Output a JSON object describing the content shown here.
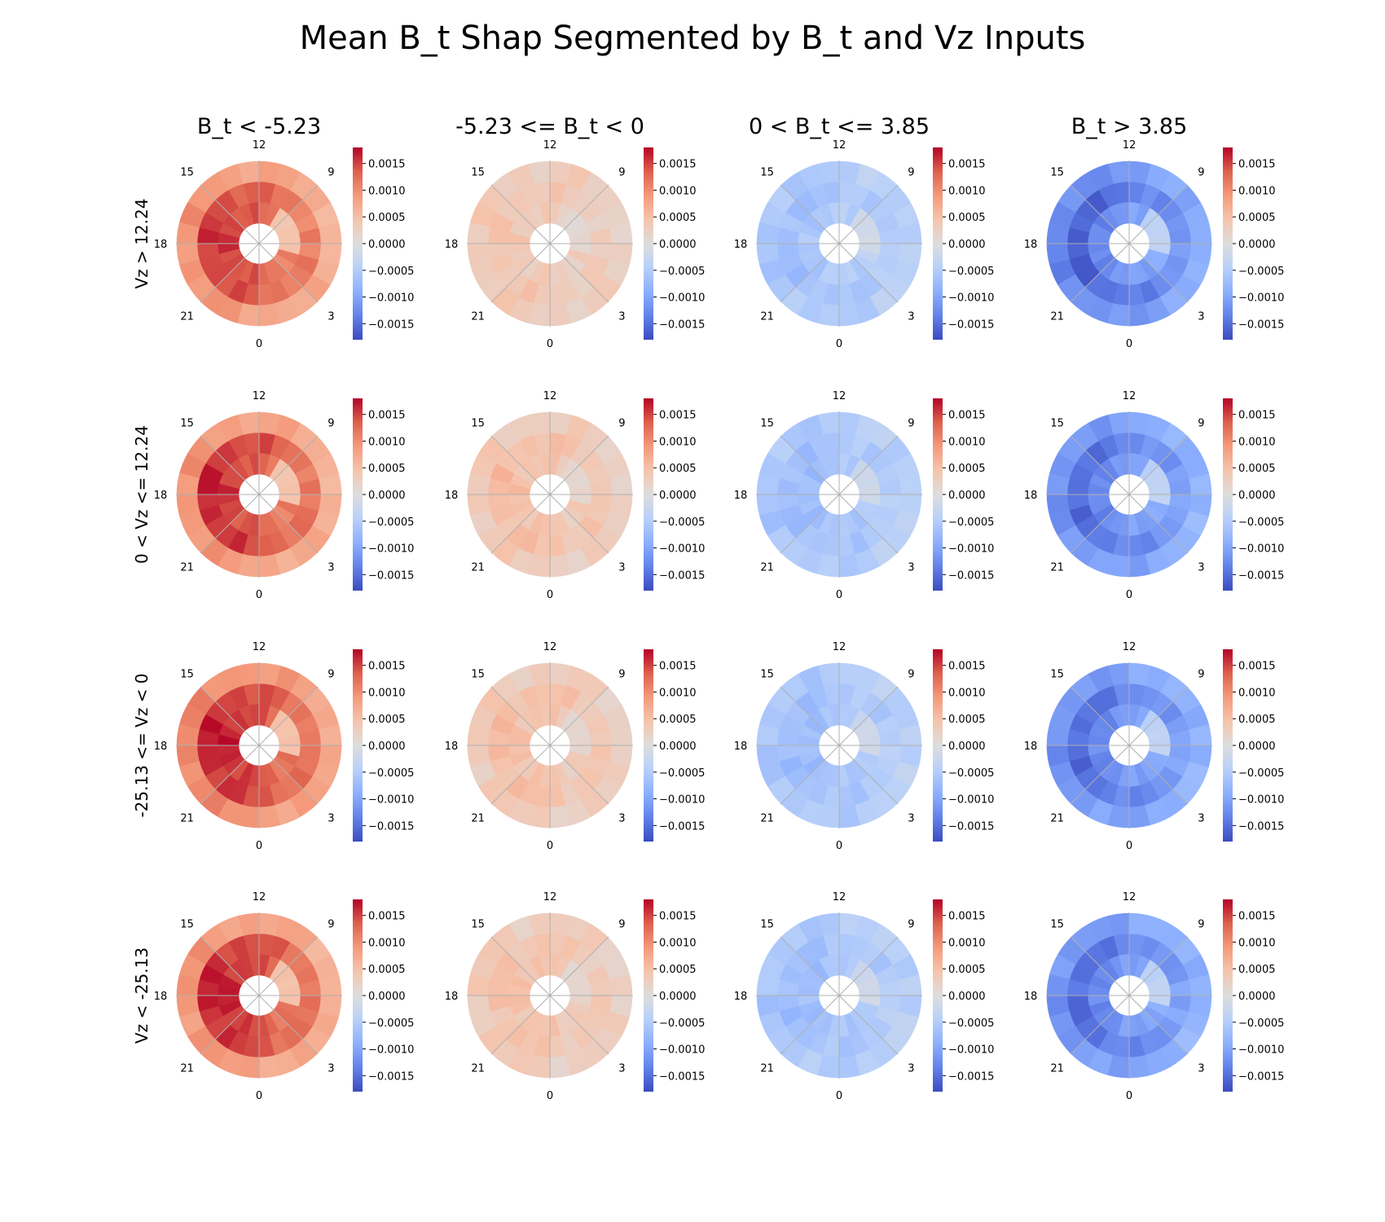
{
  "chart_data": {
    "type": "polar-heatmap-grid",
    "title": "Mean B_t Shap Segmented by B_t and Vz Inputs",
    "column_titles": [
      "B_t < -5.23",
      "-5.23 <= B_t < 0",
      "0 < B_t <= 3.85",
      "B_t > 3.85"
    ],
    "row_titles": [
      "Vz > 12.24",
      "0 < Vz <= 12.24",
      "-25.13 <= Vz < 0",
      "Vz < -25.13"
    ],
    "mlt_labels": [
      {
        "text": "12",
        "angle_deg": 90
      },
      {
        "text": "9",
        "angle_deg": 45
      },
      {
        "text": "3",
        "angle_deg": -45
      },
      {
        "text": "0",
        "angle_deg": -90
      },
      {
        "text": "21",
        "angle_deg": -135
      },
      {
        "text": "18",
        "angle_deg": 180
      },
      {
        "text": "15",
        "angle_deg": 135
      }
    ],
    "colorbar": {
      "colormap": "coolwarm",
      "vmin": -0.0018,
      "vmax": 0.0018,
      "ticks": [
        {
          "value": 0.0015,
          "label": "0.0015"
        },
        {
          "value": 0.001,
          "label": "0.0010"
        },
        {
          "value": 0.0005,
          "label": "0.0005"
        },
        {
          "value": 0.0,
          "label": "0.0000"
        },
        {
          "value": -0.0005,
          "label": "−0.0005"
        },
        {
          "value": -0.001,
          "label": "−0.0010"
        },
        {
          "value": -0.0015,
          "label": "−0.0015"
        }
      ]
    },
    "sectors": 24,
    "ring_means": [
      [
        [
          0.0013,
          0.0013,
          0.0008
        ],
        [
          0.0003,
          0.00035,
          0.0003
        ],
        [
          -0.0005,
          -0.0006,
          -0.0005
        ],
        [
          -0.0011,
          -0.0014,
          -0.0011
        ]
      ],
      [
        [
          0.0013,
          0.0014,
          0.0008
        ],
        [
          0.0004,
          0.00045,
          0.0003
        ],
        [
          -0.0006,
          -0.0006,
          -0.0005
        ],
        [
          -0.0011,
          -0.0013,
          -0.001
        ]
      ],
      [
        [
          0.0014,
          0.0014,
          0.0009
        ],
        [
          0.0004,
          0.00045,
          0.0003
        ],
        [
          -0.0006,
          -0.0006,
          -0.0005
        ],
        [
          -0.0011,
          -0.0013,
          -0.001
        ]
      ],
      [
        [
          0.0014,
          0.0014,
          0.0008
        ],
        [
          0.0004,
          0.0004,
          0.0003
        ],
        [
          -0.0006,
          -0.0006,
          -0.0005
        ],
        [
          -0.0011,
          -0.0013,
          -0.001
        ]
      ]
    ],
    "panel_means": [
      [
        0.0011,
        0.0003,
        -0.0005,
        -0.0012
      ],
      [
        0.0012,
        0.0004,
        -0.0006,
        -0.0011
      ],
      [
        0.0012,
        0.0004,
        -0.0006,
        -0.0011
      ],
      [
        0.0012,
        0.0004,
        -0.0006,
        -0.0011
      ]
    ]
  }
}
